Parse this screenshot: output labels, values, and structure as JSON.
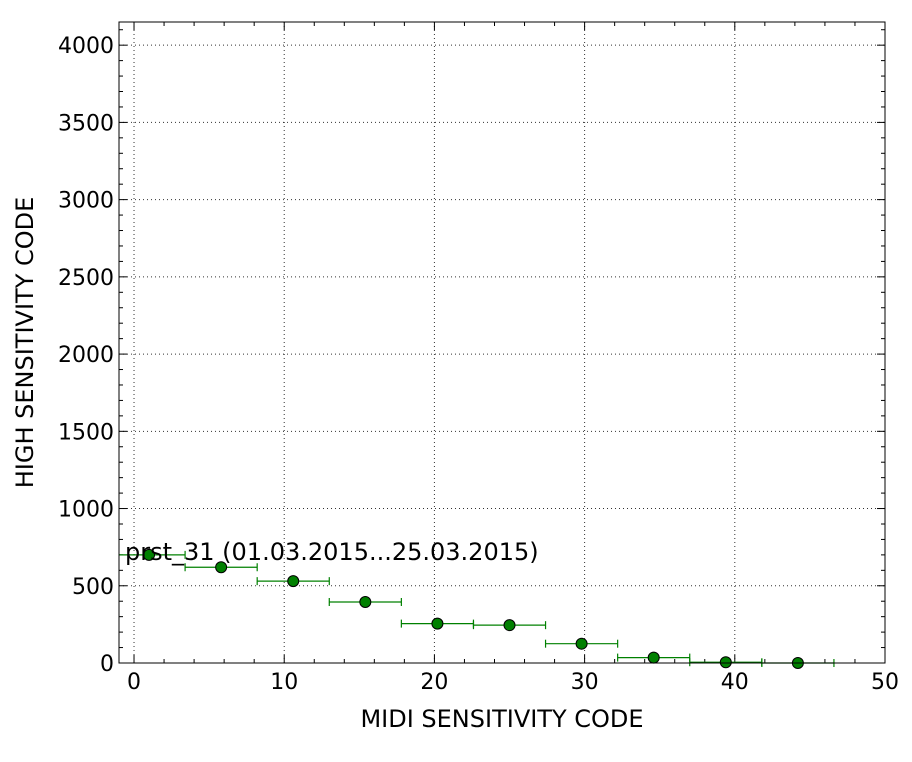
{
  "chart_data": {
    "type": "scatter",
    "xlabel": "MIDI SENSITIVITY CODE",
    "ylabel": "HIGH SENSITIVITY CODE",
    "xlim": [
      -1,
      50
    ],
    "ylim": [
      0,
      4150
    ],
    "xticks": [
      0,
      10,
      20,
      30,
      40,
      50
    ],
    "yticks": [
      0,
      500,
      1000,
      1500,
      2000,
      2500,
      3000,
      3500,
      4000
    ],
    "grid": true,
    "annotation": "prst_31 (01.03.2015...25.03.2015)",
    "color": "#008000",
    "points": [
      {
        "x": 1.0,
        "y": 700,
        "xerr": 2.4,
        "yerr": 20
      },
      {
        "x": 5.8,
        "y": 620,
        "xerr": 2.4,
        "yerr": 15
      },
      {
        "x": 10.6,
        "y": 530,
        "xerr": 2.4,
        "yerr": 15
      },
      {
        "x": 15.4,
        "y": 395,
        "xerr": 2.4,
        "yerr": 15
      },
      {
        "x": 20.2,
        "y": 255,
        "xerr": 2.4,
        "yerr": 30
      },
      {
        "x": 25.0,
        "y": 245,
        "xerr": 2.4,
        "yerr": 15
      },
      {
        "x": 29.8,
        "y": 125,
        "xerr": 2.4,
        "yerr": 15
      },
      {
        "x": 34.6,
        "y": 35,
        "xerr": 2.4,
        "yerr": 10
      },
      {
        "x": 39.4,
        "y": 5,
        "xerr": 2.4,
        "yerr": 5
      },
      {
        "x": 44.2,
        "y": 0,
        "xerr": 2.4,
        "yerr": 5
      }
    ]
  }
}
